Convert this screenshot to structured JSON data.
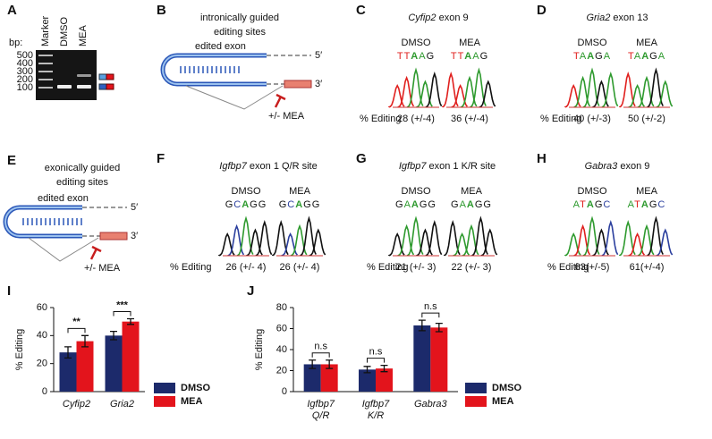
{
  "panels": {
    "A": {
      "letter": "A",
      "bp_label": "bp:",
      "lanes": [
        "Marker",
        "DMSO",
        "MEA"
      ],
      "ladder": [
        "500",
        "400",
        "300",
        "200",
        "100"
      ]
    },
    "B": {
      "letter": "B",
      "title_lines": [
        "intronically guided",
        "editing sites"
      ],
      "exon_label": "edited exon",
      "five": "5′",
      "three": "3′",
      "treatment": "+/- MEA"
    },
    "C": {
      "letter": "C",
      "gene": "Cyfip2",
      "title_rest": " exon 9",
      "conditions": [
        "DMSO",
        "MEA"
      ],
      "sequences": [
        "TTAAG",
        "TTAAG"
      ],
      "editing_label": "% Editing",
      "editing": [
        "28 (+/-4)",
        "36 (+/-4)"
      ]
    },
    "D": {
      "letter": "D",
      "gene": "Gria2",
      "title_rest": " exon 13",
      "conditions": [
        "DMSO",
        "MEA"
      ],
      "sequences": [
        "TAAGA",
        "TAAGA"
      ],
      "editing_label": "% Editing",
      "editing": [
        "40 (+/-3)",
        "50 (+/-2)"
      ]
    },
    "E": {
      "letter": "E",
      "title_lines": [
        "exonically guided",
        "editing sites"
      ],
      "exon_label": "edited exon",
      "five": "5′",
      "three": "3′",
      "treatment": "+/- MEA"
    },
    "F": {
      "letter": "F",
      "gene": "Igfbp7",
      "title_rest": " exon 1 Q/R site",
      "conditions": [
        "DMSO",
        "MEA"
      ],
      "sequences": [
        "GCAGG",
        "GCAGG"
      ],
      "editing_label": "% Editing",
      "editing": [
        "26 (+/- 4)",
        "26 (+/- 4)"
      ]
    },
    "G": {
      "letter": "G",
      "gene": "Igfbp7",
      "title_rest": " exon 1 K/R site",
      "conditions": [
        "DMSO",
        "MEA"
      ],
      "sequences": [
        "GAAGG",
        "GAAGG"
      ],
      "editing_label": "% Editing",
      "editing": [
        "21 (+/- 3)",
        "22 (+/- 3)"
      ]
    },
    "H": {
      "letter": "H",
      "gene": "Gabra3",
      "title_rest": " exon 9",
      "conditions": [
        "DMSO",
        "MEA"
      ],
      "sequences": [
        "ATAGC",
        "ATAGC"
      ],
      "editing_label": "% Editing",
      "editing": [
        "63(+/-5)",
        "61(+/-4)"
      ]
    }
  },
  "chart_data": [
    {
      "type": "bar",
      "letter": "I",
      "y_label": "% Editing",
      "categories": [
        [
          "Cyfip2"
        ],
        [
          "Gria2"
        ]
      ],
      "series": [
        {
          "name": "DMSO",
          "color": "#1c2a6b",
          "values": [
            28,
            40
          ],
          "errors": [
            4,
            3
          ]
        },
        {
          "name": "MEA",
          "color": "#e3141c",
          "values": [
            36,
            50
          ],
          "errors": [
            4,
            2
          ]
        }
      ],
      "significance": [
        "**",
        "***"
      ],
      "ylim": [
        0,
        60
      ],
      "yticks": [
        0,
        20,
        40,
        60
      ]
    },
    {
      "type": "bar",
      "letter": "J",
      "y_label": "% Editing",
      "categories": [
        [
          "Igfbp7",
          "Q/R"
        ],
        [
          "Igfbp7",
          "K/R"
        ],
        [
          "Gabra3"
        ]
      ],
      "series": [
        {
          "name": "DMSO",
          "color": "#1c2a6b",
          "values": [
            26,
            21,
            63
          ],
          "errors": [
            4,
            3,
            5
          ]
        },
        {
          "name": "MEA",
          "color": "#e3141c",
          "values": [
            26,
            22,
            61
          ],
          "errors": [
            4,
            3,
            4
          ]
        }
      ],
      "significance": [
        "n.s",
        "n.s",
        "n.s"
      ],
      "ylim": [
        0,
        80
      ],
      "yticks": [
        0,
        20,
        40,
        60,
        80
      ]
    }
  ]
}
